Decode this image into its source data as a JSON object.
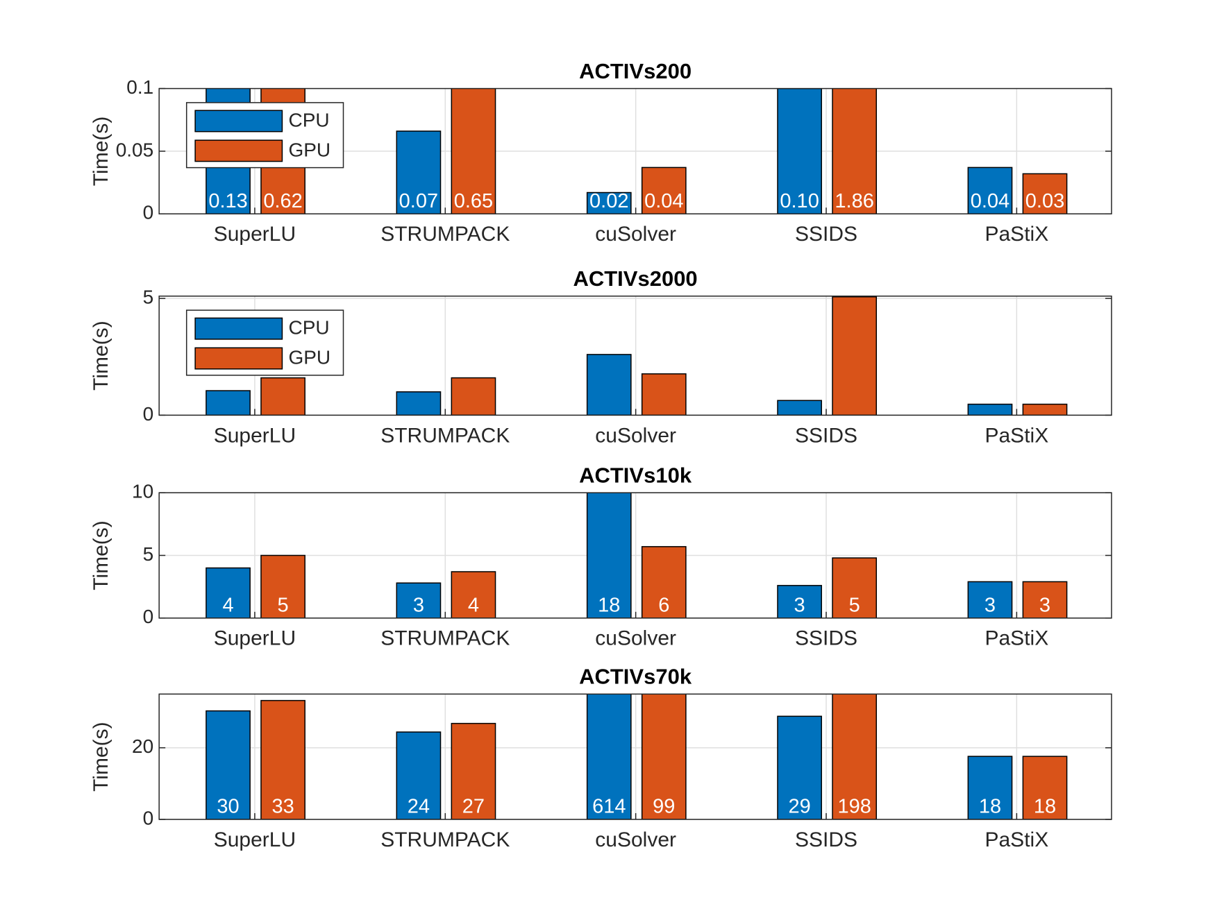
{
  "chart_data": [
    {
      "type": "bar",
      "title": "ACTIVs200",
      "ylabel": "Time(s)",
      "categories": [
        "SuperLU",
        "STRUMPACK",
        "cuSolver",
        "SSIDS",
        "PaStiX"
      ],
      "series": [
        {
          "name": "CPU",
          "color": "#0072bd",
          "values": [
            0.13,
            0.066,
            0.017,
            0.1,
            0.037
          ],
          "value_labels": [
            "0.13",
            "0.07",
            "0.02",
            "0.10",
            "0.04"
          ]
        },
        {
          "name": "GPU",
          "color": "#d95319",
          "values": [
            0.62,
            0.65,
            0.037,
            1.86,
            0.032
          ],
          "value_labels": [
            "0.62",
            "0.65",
            "0.04",
            "1.86",
            "0.03"
          ]
        }
      ],
      "ylim": [
        0,
        0.1
      ],
      "yticks": [
        0,
        0.05,
        0.1
      ],
      "grid": true,
      "legend": "upper left"
    },
    {
      "type": "bar",
      "title": "ACTIVs2000",
      "ylabel": "Time(s)",
      "categories": [
        "SuperLU",
        "STRUMPACK",
        "cuSolver",
        "SSIDS",
        "PaStiX"
      ],
      "series": [
        {
          "name": "CPU",
          "color": "#0072bd",
          "values": [
            1.05,
            1.0,
            2.6,
            0.63,
            0.47
          ]
        },
        {
          "name": "GPU",
          "color": "#d95319",
          "values": [
            1.6,
            1.6,
            1.77,
            5.07,
            0.47
          ]
        }
      ],
      "ylim": [
        0,
        5.1
      ],
      "yticks": [
        0,
        5
      ],
      "grid": true,
      "legend": "upper left"
    },
    {
      "type": "bar",
      "title": "ACTIVs10k",
      "ylabel": "Time(s)",
      "categories": [
        "SuperLU",
        "STRUMPACK",
        "cuSolver",
        "SSIDS",
        "PaStiX"
      ],
      "series": [
        {
          "name": "CPU",
          "color": "#0072bd",
          "values": [
            4,
            2.8,
            18,
            2.6,
            2.9
          ],
          "value_labels": [
            "4",
            "3",
            "18",
            "3",
            "3"
          ]
        },
        {
          "name": "GPU",
          "color": "#d95319",
          "values": [
            5,
            3.7,
            5.7,
            4.8,
            2.9
          ],
          "value_labels": [
            "5",
            "4",
            "6",
            "5",
            "3"
          ]
        }
      ],
      "ylim": [
        0,
        10
      ],
      "yticks": [
        0,
        5,
        10
      ],
      "grid": true
    },
    {
      "type": "bar",
      "title": "ACTIVs70k",
      "ylabel": "Time(s)",
      "categories": [
        "SuperLU",
        "STRUMPACK",
        "cuSolver",
        "SSIDS",
        "PaStiX"
      ],
      "series": [
        {
          "name": "CPU",
          "color": "#0072bd",
          "values": [
            30.3,
            24.4,
            614,
            28.8,
            17.6
          ],
          "value_labels": [
            "30",
            "24",
            "614",
            "29",
            "18"
          ]
        },
        {
          "name": "GPU",
          "color": "#d95319",
          "values": [
            33.2,
            26.8,
            99,
            198,
            17.6
          ],
          "value_labels": [
            "33",
            "27",
            "99",
            "198",
            "18"
          ]
        }
      ],
      "ylim": [
        0,
        35
      ],
      "yticks": [
        0,
        20
      ],
      "grid": true
    }
  ]
}
